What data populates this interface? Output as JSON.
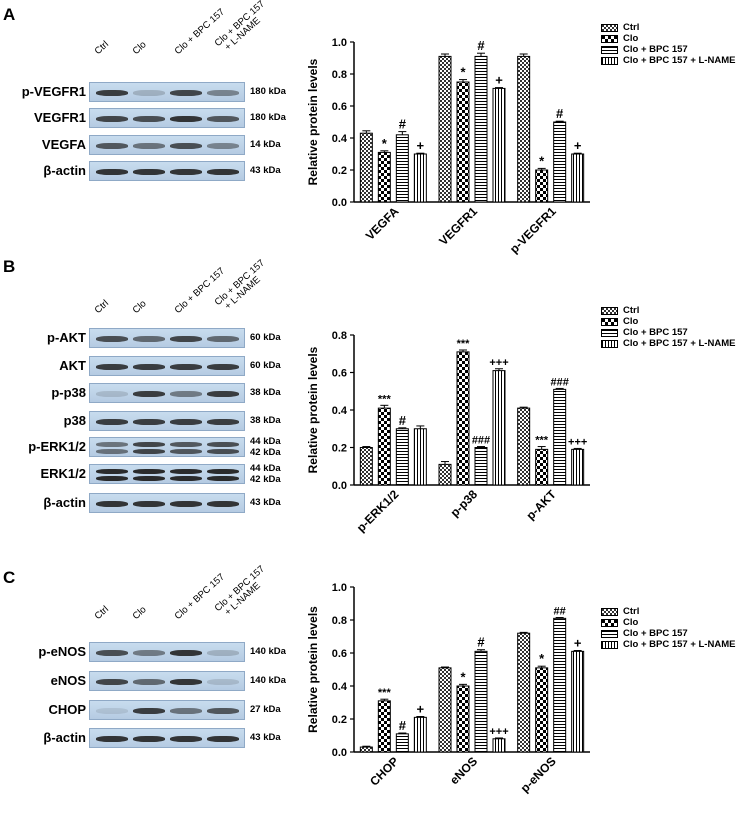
{
  "lane_headers": [
    "Ctrl",
    "Clo",
    "Clo + BPC 157",
    "Clo + BPC 157",
    "+ L-NAME"
  ],
  "panels": [
    {
      "letter": "A",
      "blots": [
        {
          "label": "p-VEGFR1",
          "kda": "180 kDa",
          "intensity": [
            0.85,
            0.2,
            0.8,
            0.45
          ]
        },
        {
          "label": "VEGFR1",
          "kda": "180 kDa",
          "intensity": [
            0.8,
            0.75,
            0.9,
            0.7
          ]
        },
        {
          "label": "VEGFA",
          "kda": "14 kDa",
          "intensity": [
            0.7,
            0.55,
            0.75,
            0.45
          ]
        },
        {
          "label": "β-actin",
          "kda": "43 kDa",
          "intensity": [
            0.9,
            0.9,
            0.9,
            0.9
          ]
        }
      ]
    },
    {
      "letter": "B",
      "blots": [
        {
          "label": "p-AKT",
          "kda": "60 kDa",
          "intensity": [
            0.75,
            0.6,
            0.8,
            0.6
          ]
        },
        {
          "label": "AKT",
          "kda": "60 kDa",
          "intensity": [
            0.85,
            0.85,
            0.85,
            0.85
          ]
        },
        {
          "label": "p-p38",
          "kda": "38 kDa",
          "intensity": [
            0.15,
            0.85,
            0.5,
            0.85
          ]
        },
        {
          "label": "p38",
          "kda": "38 kDa",
          "intensity": [
            0.85,
            0.85,
            0.85,
            0.85
          ]
        },
        {
          "label": "p-ERK1/2",
          "kda": "44 kDa",
          "kda2": "42 kDa",
          "intensity": [
            0.55,
            0.8,
            0.7,
            0.75
          ]
        },
        {
          "label": "ERK1/2",
          "kda": "44 kDa",
          "kda2": "42 kDa",
          "intensity": [
            0.95,
            0.95,
            0.95,
            0.95
          ]
        },
        {
          "label": "β-actin",
          "kda": "43 kDa",
          "intensity": [
            0.9,
            0.9,
            0.9,
            0.9
          ]
        }
      ]
    },
    {
      "letter": "C",
      "blots": [
        {
          "label": "p-eNOS",
          "kda": "140 kDa",
          "intensity": [
            0.75,
            0.5,
            0.9,
            0.2
          ]
        },
        {
          "label": "eNOS",
          "kda": "140 kDa",
          "intensity": [
            0.8,
            0.6,
            0.9,
            0.15
          ]
        },
        {
          "label": "CHOP",
          "kda": "27 kDa",
          "intensity": [
            0.1,
            0.85,
            0.55,
            0.7
          ]
        },
        {
          "label": "β-actin",
          "kda": "43 kDa",
          "intensity": [
            0.9,
            0.9,
            0.9,
            0.9
          ]
        }
      ]
    }
  ],
  "legend": [
    "Ctrl",
    "Clo",
    "Clo + BPC 157",
    "Clo + BPC 157 + L-NAME"
  ],
  "chart_data": [
    {
      "type": "bar",
      "ylabel": "Relative protein levels",
      "ylim": [
        0,
        1.0
      ],
      "yticks": [
        "0.0",
        "0.2",
        "0.4",
        "0.6",
        "0.8",
        "1.0"
      ],
      "categories": [
        "VEGFA",
        "VEGFR1",
        "p-VEGFR1"
      ],
      "series": [
        {
          "name": "Ctrl",
          "values": [
            0.43,
            0.91,
            0.91
          ],
          "errors": [
            0.015,
            0.015,
            0.015
          ]
        },
        {
          "name": "Clo",
          "values": [
            0.31,
            0.75,
            0.2
          ],
          "errors": [
            0.01,
            0.015,
            0.01
          ]
        },
        {
          "name": "Clo + BPC 157",
          "values": [
            0.42,
            0.91,
            0.5
          ],
          "errors": [
            0.02,
            0.02,
            0.005
          ]
        },
        {
          "name": "Clo + BPC 157 + L-NAME",
          "values": [
            0.3,
            0.71,
            0.3
          ],
          "errors": [
            0.005,
            0.005,
            0.005
          ]
        }
      ],
      "annotations": [
        [
          "",
          "*",
          "#",
          "+"
        ],
        [
          "",
          "*",
          "#",
          "+"
        ],
        [
          "",
          "*",
          "#",
          "+"
        ]
      ]
    },
    {
      "type": "bar",
      "ylabel": "Relative protein levels",
      "ylim": [
        0,
        0.8
      ],
      "yticks": [
        "0.0",
        "0.2",
        "0.4",
        "0.6",
        "0.8"
      ],
      "categories": [
        "p-ERK1/2",
        "p-p38",
        "p-AKT"
      ],
      "series": [
        {
          "name": "Ctrl",
          "values": [
            0.2,
            0.11,
            0.41
          ],
          "errors": [
            0.005,
            0.015,
            0.005
          ]
        },
        {
          "name": "Clo",
          "values": [
            0.41,
            0.71,
            0.19
          ],
          "errors": [
            0.015,
            0.01,
            0.015
          ]
        },
        {
          "name": "Clo + BPC 157",
          "values": [
            0.3,
            0.2,
            0.51
          ],
          "errors": [
            0.005,
            0.005,
            0.005
          ]
        },
        {
          "name": "Clo + BPC 157 + L-NAME",
          "values": [
            0.3,
            0.61,
            0.19
          ],
          "errors": [
            0.015,
            0.01,
            0.005
          ]
        }
      ],
      "annotations": [
        [
          "",
          "***",
          "#",
          ""
        ],
        [
          "",
          "***",
          "###",
          "+++"
        ],
        [
          "",
          "***",
          "###",
          "+++"
        ]
      ]
    },
    {
      "type": "bar",
      "ylabel": "Relative protein levels",
      "ylim": [
        0,
        1.0
      ],
      "yticks": [
        "0.0",
        "0.2",
        "0.4",
        "0.6",
        "0.8",
        "1.0"
      ],
      "categories": [
        "CHOP",
        "eNOS",
        "p-eNOS"
      ],
      "series": [
        {
          "name": "Ctrl",
          "values": [
            0.03,
            0.51,
            0.72
          ],
          "errors": [
            0.005,
            0.005,
            0.005
          ]
        },
        {
          "name": "Clo",
          "values": [
            0.31,
            0.4,
            0.51
          ],
          "errors": [
            0.01,
            0.01,
            0.01
          ]
        },
        {
          "name": "Clo + BPC 157",
          "values": [
            0.11,
            0.61,
            0.81
          ],
          "errors": [
            0.005,
            0.01,
            0.005
          ]
        },
        {
          "name": "Clo + BPC 157 + L-NAME",
          "values": [
            0.21,
            0.08,
            0.61
          ],
          "errors": [
            0.005,
            0.005,
            0.005
          ]
        }
      ],
      "annotations": [
        [
          "",
          "***",
          "#",
          "+"
        ],
        [
          "",
          "*",
          "#",
          "+++"
        ],
        [
          "",
          "*",
          "##",
          "+"
        ]
      ]
    }
  ]
}
